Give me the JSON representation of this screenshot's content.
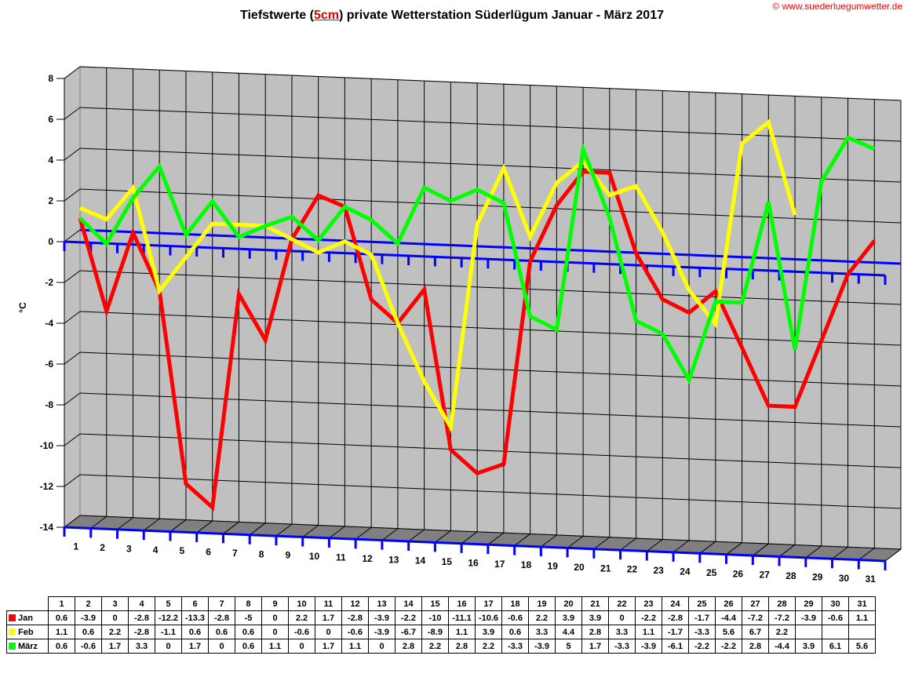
{
  "header": {
    "title_prefix": "Tiefstwerte (",
    "title_highlight": "5cm",
    "title_suffix": ") private Wetterstation Süderlügum Januar - März 2017",
    "copyright": "© www.suederluegumwetter.de"
  },
  "chart_data": {
    "type": "line",
    "title": "Tiefstwerte (5cm) private Wetterstation Süderlügum Januar - März 2017",
    "xlabel": "",
    "ylabel": "°C",
    "ylim": [
      -14,
      8
    ],
    "yticks": [
      8,
      6,
      4,
      2,
      0,
      -2,
      -4,
      -6,
      -8,
      -10,
      -12,
      -14
    ],
    "grid": true,
    "style": "3d-wall",
    "legend_position": "table-below",
    "categories": [
      "1",
      "2",
      "3",
      "4",
      "5",
      "6",
      "7",
      "8",
      "9",
      "10",
      "11",
      "12",
      "13",
      "14",
      "15",
      "16",
      "17",
      "18",
      "19",
      "20",
      "21",
      "22",
      "23",
      "24",
      "25",
      "26",
      "27",
      "28",
      "29",
      "30",
      "31"
    ],
    "series": [
      {
        "name": "Jan",
        "color": "#ff0000",
        "values": [
          0.6,
          -3.9,
          0,
          -2.8,
          -12.2,
          -13.3,
          -2.8,
          -5,
          0,
          2.2,
          1.7,
          -2.8,
          -3.9,
          -2.2,
          -10,
          -11.1,
          -10.6,
          -0.6,
          2.2,
          3.9,
          3.9,
          0,
          -2.2,
          -2.8,
          -1.7,
          -4.4,
          -7.2,
          -7.2,
          -3.9,
          -0.6,
          1.1
        ]
      },
      {
        "name": "Feb",
        "color": "#ffff00",
        "values": [
          1.1,
          0.6,
          2.2,
          -2.8,
          -1.1,
          0.6,
          0.6,
          0.6,
          0,
          -0.6,
          0,
          -0.6,
          -3.9,
          -6.7,
          -8.9,
          1.1,
          3.9,
          0.6,
          3.3,
          4.4,
          2.8,
          3.3,
          1.1,
          -1.7,
          -3.3,
          5.6,
          6.7,
          2.2,
          null,
          null,
          null
        ]
      },
      {
        "name": "März",
        "color": "#00ff00",
        "values": [
          0.6,
          -0.6,
          1.7,
          3.3,
          0,
          1.7,
          0,
          0.6,
          1.1,
          0,
          1.7,
          1.1,
          0,
          2.8,
          2.2,
          2.8,
          2.2,
          -3.3,
          -3.9,
          5,
          1.7,
          -3.3,
          -3.9,
          -6.1,
          -2.2,
          -2.2,
          2.8,
          -4.4,
          3.9,
          6.1,
          5.6
        ]
      }
    ],
    "zero_line_color": "#0000ff"
  },
  "table": {
    "headers": [
      "1",
      "2",
      "3",
      "4",
      "5",
      "6",
      "7",
      "8",
      "9",
      "10",
      "11",
      "12",
      "13",
      "14",
      "15",
      "16",
      "17",
      "18",
      "19",
      "20",
      "21",
      "22",
      "23",
      "24",
      "25",
      "26",
      "27",
      "28",
      "29",
      "30",
      "31"
    ],
    "rows": [
      {
        "label": "Jan",
        "color": "#ff0000",
        "cells": [
          "0.6",
          "-3.9",
          "0",
          "-2.8",
          "-12.2",
          "-13.3",
          "-2.8",
          "-5",
          "0",
          "2.2",
          "1.7",
          "-2.8",
          "-3.9",
          "-2.2",
          "-10",
          "-11.1",
          "-10.6",
          "-0.6",
          "2.2",
          "3.9",
          "3.9",
          "0",
          "-2.2",
          "-2.8",
          "-1.7",
          "-4.4",
          "-7.2",
          "-7.2",
          "-3.9",
          "-0.6",
          "1.1"
        ]
      },
      {
        "label": "Feb",
        "color": "#ffff00",
        "cells": [
          "1.1",
          "0.6",
          "2.2",
          "-2.8",
          "-1.1",
          "0.6",
          "0.6",
          "0.6",
          "0",
          "-0.6",
          "0",
          "-0.6",
          "-3.9",
          "-6.7",
          "-8.9",
          "1.1",
          "3.9",
          "0.6",
          "3.3",
          "4.4",
          "2.8",
          "3.3",
          "1.1",
          "-1.7",
          "-3.3",
          "5.6",
          "6.7",
          "2.2",
          "",
          "",
          ""
        ]
      },
      {
        "label": "März",
        "color": "#00ff00",
        "cells": [
          "0.6",
          "-0.6",
          "1.7",
          "3.3",
          "0",
          "1.7",
          "0",
          "0.6",
          "1.1",
          "0",
          "1.7",
          "1.1",
          "0",
          "2.8",
          "2.2",
          "2.8",
          "2.2",
          "-3.3",
          "-3.9",
          "5",
          "1.7",
          "-3.3",
          "-3.9",
          "-6.1",
          "-2.2",
          "-2.2",
          "2.8",
          "-4.4",
          "3.9",
          "6.1",
          "5.6"
        ]
      }
    ]
  }
}
